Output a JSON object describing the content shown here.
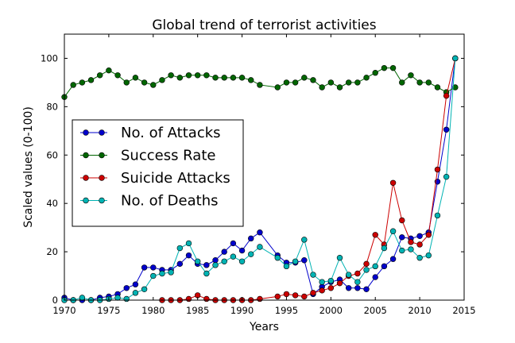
{
  "chart_data": {
    "type": "line",
    "title": "Global trend of terrorist activities",
    "xlabel": "Years",
    "ylabel": "Scaled values (0-100)",
    "xlim": [
      1970,
      2015
    ],
    "ylim": [
      0,
      110
    ],
    "xticks": [
      1970,
      1975,
      1980,
      1985,
      1990,
      1995,
      2000,
      2005,
      2010,
      2015
    ],
    "yticks": [
      0,
      20,
      40,
      60,
      80,
      100
    ],
    "grid": false,
    "legend_position": "center-left",
    "series": [
      {
        "name": "No. of Attacks",
        "color": "#0000cc",
        "x": [
          1970,
          1971,
          1972,
          1973,
          1974,
          1975,
          1976,
          1977,
          1978,
          1979,
          1980,
          1981,
          1982,
          1983,
          1984,
          1985,
          1986,
          1987,
          1988,
          1989,
          1990,
          1991,
          1992,
          1994,
          1995,
          1996,
          1997,
          1998,
          1999,
          2000,
          2001,
          2002,
          2003,
          2004,
          2005,
          2006,
          2007,
          2008,
          2009,
          2010,
          2011,
          2012,
          2013,
          2014
        ],
        "y": [
          1,
          0,
          0,
          0,
          1,
          1.5,
          2.5,
          5,
          6.5,
          13.5,
          13.5,
          12.5,
          12.5,
          15,
          18.5,
          15,
          14.5,
          16.5,
          20,
          23.5,
          20.5,
          25.5,
          28,
          18.5,
          15.5,
          15.5,
          16.5,
          2.5,
          5.5,
          7.5,
          8.5,
          5,
          5,
          4.5,
          9.5,
          14,
          17,
          26,
          25.5,
          26.5,
          28,
          49,
          70.5,
          100
        ]
      },
      {
        "name": "Success Rate",
        "color": "#006600",
        "x": [
          1970,
          1971,
          1972,
          1973,
          1974,
          1975,
          1976,
          1977,
          1978,
          1979,
          1980,
          1981,
          1982,
          1983,
          1984,
          1985,
          1986,
          1987,
          1988,
          1989,
          1990,
          1991,
          1992,
          1994,
          1995,
          1996,
          1997,
          1998,
          1999,
          2000,
          2001,
          2002,
          2003,
          2004,
          2005,
          2006,
          2007,
          2008,
          2009,
          2010,
          2011,
          2012,
          2013,
          2014
        ],
        "y": [
          84,
          89,
          90,
          91,
          93,
          95,
          93,
          90,
          92,
          90,
          89,
          91,
          93,
          92,
          93,
          93,
          93,
          92,
          92,
          92,
          92,
          91,
          89,
          88,
          90,
          90,
          92,
          91,
          88,
          90,
          88,
          90,
          90,
          92,
          94,
          96,
          96,
          90,
          93,
          90,
          90,
          88,
          86,
          88
        ]
      },
      {
        "name": "Suicide Attacks",
        "color": "#cc0000",
        "x": [
          1981,
          1982,
          1983,
          1984,
          1985,
          1986,
          1987,
          1988,
          1989,
          1990,
          1991,
          1992,
          1994,
          1995,
          1996,
          1997,
          1998,
          1999,
          2000,
          2001,
          2002,
          2003,
          2004,
          2005,
          2006,
          2007,
          2008,
          2009,
          2010,
          2011,
          2012,
          2013,
          2014
        ],
        "y": [
          0,
          0,
          0,
          0.5,
          2,
          0.5,
          0,
          0,
          0,
          0,
          0,
          0.5,
          1.5,
          2.5,
          2,
          1.5,
          3,
          4,
          5,
          7,
          10,
          11,
          15,
          27,
          23,
          48.5,
          33,
          24,
          23,
          27,
          54,
          84.5,
          100
        ]
      },
      {
        "name": "No. of Deaths",
        "color": "#00b3b3",
        "x": [
          1970,
          1971,
          1972,
          1973,
          1974,
          1975,
          1976,
          1977,
          1978,
          1979,
          1980,
          1981,
          1982,
          1983,
          1984,
          1985,
          1986,
          1987,
          1988,
          1989,
          1990,
          1991,
          1992,
          1994,
          1995,
          1996,
          1997,
          1998,
          1999,
          2000,
          2001,
          2002,
          2003,
          2004,
          2005,
          2006,
          2007,
          2008,
          2009,
          2010,
          2011,
          2012,
          2013,
          2014
        ],
        "y": [
          0,
          0,
          1,
          0,
          0,
          0.5,
          1,
          0.5,
          3,
          4.5,
          10,
          11,
          11.5,
          21.5,
          23.5,
          16,
          11,
          14.5,
          16,
          18,
          16,
          19,
          22,
          17.5,
          14,
          16,
          25,
          10.5,
          7.5,
          8,
          17.5,
          10.5,
          7.5,
          12.5,
          14,
          21.5,
          28.5,
          20.5,
          21,
          17.5,
          18.5,
          35,
          51,
          100
        ]
      }
    ]
  }
}
